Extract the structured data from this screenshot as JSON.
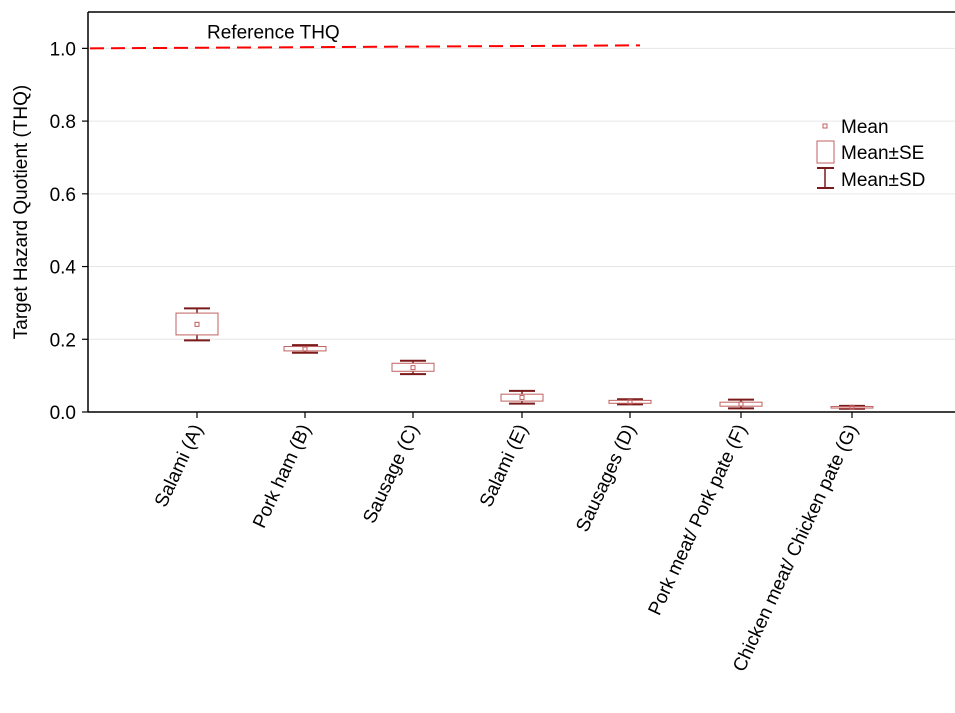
{
  "chart_data": {
    "type": "box",
    "ylabel": "Target Hazard Quotient (THQ)",
    "xlabel": "",
    "ylim": [
      0,
      1.1
    ],
    "yticks": [
      "0.0",
      "0.2",
      "0.4",
      "0.6",
      "0.8",
      "1.0"
    ],
    "grid": true,
    "legend_placement": "right",
    "categories": [
      "Salami (A)",
      "Pork ham (B)",
      "Sausage (C)",
      "Salami (E)",
      "Sausages (D)",
      "Pork meat/ Pork pate (F)",
      "Chicken meat/ Chicken pate (G)"
    ],
    "series": [
      {
        "mean": [
          0.241,
          0.173,
          0.122,
          0.04,
          0.028,
          0.022,
          0.013
        ],
        "se_low": [
          0.212,
          0.168,
          0.112,
          0.03,
          0.024,
          0.016,
          0.011
        ],
        "se_high": [
          0.272,
          0.18,
          0.134,
          0.049,
          0.032,
          0.027,
          0.015
        ],
        "sd_low": [
          0.197,
          0.163,
          0.104,
          0.023,
          0.021,
          0.01,
          0.009
        ],
        "sd_high": [
          0.285,
          0.184,
          0.141,
          0.058,
          0.035,
          0.034,
          0.017
        ]
      }
    ],
    "reference_line": {
      "label": "Reference THQ",
      "value": 1.0,
      "color": "#ff0000"
    },
    "legend": [
      "Mean",
      "Mean±SE",
      "Mean±SD"
    ],
    "colors": {
      "box": "#c06060",
      "whisker": "#7a1a1a",
      "mean": "#c06060",
      "grid": "#e6e6e6"
    }
  }
}
